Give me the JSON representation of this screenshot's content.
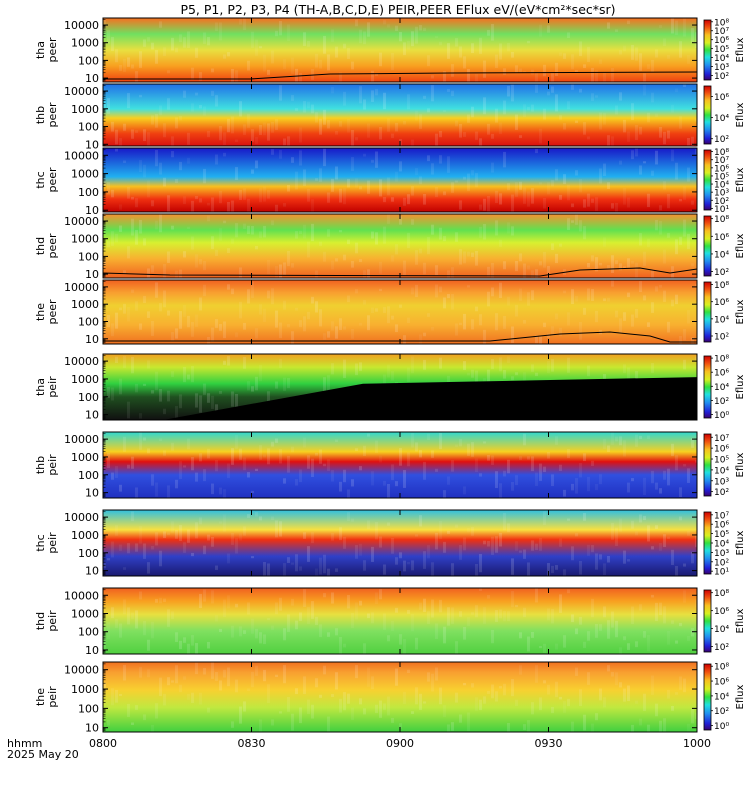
{
  "title": "P5, P1, P2, P3, P4 (TH-A,B,C,D,E) PEIR,PEER EFlux eV/(eV*cm²*sec*sr)",
  "footer": {
    "axis_caption": "hhmm",
    "date": "2025 May 20"
  },
  "x_ticks": [
    "0800",
    "0830",
    "0900",
    "0930",
    "1000"
  ],
  "chart_data": {
    "type": "heatmap",
    "title": "P5, P1, P2, P3, P4 (TH-A,B,C,D,E) PEIR,PEER EFlux eV/(eV*cm²*sec*sr)",
    "x_range": [
      "0800",
      "1000"
    ],
    "y_scale": "log",
    "colorbar_label": "Eflux",
    "panels": [
      {
        "ylabel": [
          "tha",
          "peer"
        ],
        "y_ticks": [
          "10",
          "100",
          "1000",
          "10000"
        ],
        "ylim": [
          6,
          25000
        ],
        "cbar_ticks": [
          "10²",
          "10³",
          "10⁴",
          "10⁵",
          "10⁶",
          "10⁷",
          "10⁸"
        ],
        "cbar_range": [
          1.5,
          8.2
        ]
      },
      {
        "ylabel": [
          "thb",
          "peer"
        ],
        "y_ticks": [
          "10",
          "100",
          "1000",
          "10000"
        ],
        "ylim": [
          8,
          25000
        ],
        "cbar_ticks": [
          "10²",
          "10⁴",
          "10⁶"
        ],
        "cbar_range": [
          1.5,
          7.0
        ]
      },
      {
        "ylabel": [
          "thc",
          "peer"
        ],
        "y_ticks": [
          "10",
          "100",
          "1000",
          "10000"
        ],
        "ylim": [
          8,
          25000
        ],
        "cbar_ticks": [
          "10¹",
          "10²",
          "10³",
          "10⁴",
          "10⁵",
          "10⁶",
          "10⁷",
          "10⁸"
        ],
        "cbar_range": [
          0.8,
          8.2
        ]
      },
      {
        "ylabel": [
          "thd",
          "peer"
        ],
        "y_ticks": [
          "10",
          "100",
          "1000",
          "10000"
        ],
        "ylim": [
          6,
          25000
        ],
        "cbar_ticks": [
          "10²",
          "10⁴",
          "10⁶",
          "10⁸"
        ],
        "cbar_range": [
          1.5,
          8.3
        ]
      },
      {
        "ylabel": [
          "the",
          "peer"
        ],
        "y_ticks": [
          "10",
          "100",
          "1000",
          "10000"
        ],
        "ylim": [
          5,
          25000
        ],
        "cbar_ticks": [
          "10²",
          "10⁴",
          "10⁶",
          "10⁸"
        ],
        "cbar_range": [
          1.3,
          8.3
        ]
      },
      {
        "ylabel": [
          "tha",
          "peir"
        ],
        "y_ticks": [
          "10",
          "100",
          "1000",
          "10000"
        ],
        "ylim": [
          5,
          25000
        ],
        "cbar_ticks": [
          "10⁰",
          "10²",
          "10⁴",
          "10⁶",
          "10⁸"
        ],
        "cbar_range": [
          -0.5,
          8.3
        ]
      },
      {
        "ylabel": [
          "thb",
          "peir"
        ],
        "y_ticks": [
          "10",
          "100",
          "1000",
          "10000"
        ],
        "ylim": [
          5,
          25000
        ],
        "cbar_ticks": [
          "10²",
          "10³",
          "10⁴",
          "10⁵",
          "10⁶",
          "10⁷"
        ],
        "cbar_range": [
          1.6,
          7.3
        ]
      },
      {
        "ylabel": [
          "thc",
          "peir"
        ],
        "y_ticks": [
          "10",
          "100",
          "1000",
          "10000"
        ],
        "ylim": [
          5,
          25000
        ],
        "cbar_ticks": [
          "10¹",
          "10²",
          "10³",
          "10⁴",
          "10⁵",
          "10⁶",
          "10⁷"
        ],
        "cbar_range": [
          0.7,
          7.3
        ]
      },
      {
        "ylabel": [
          "thd",
          "peir"
        ],
        "y_ticks": [
          "10",
          "100",
          "1000",
          "10000"
        ],
        "ylim": [
          6,
          25000
        ],
        "cbar_ticks": [
          "10²",
          "10⁴",
          "10⁶",
          "10⁸"
        ],
        "cbar_range": [
          1.4,
          8.3
        ]
      },
      {
        "ylabel": [
          "the",
          "peir"
        ],
        "y_ticks": [
          "10",
          "100",
          "1000",
          "10000"
        ],
        "ylim": [
          6,
          25000
        ],
        "cbar_ticks": [
          "10⁰",
          "10²",
          "10⁴",
          "10⁶",
          "10⁸"
        ],
        "cbar_range": [
          -0.6,
          8.3
        ]
      }
    ]
  }
}
